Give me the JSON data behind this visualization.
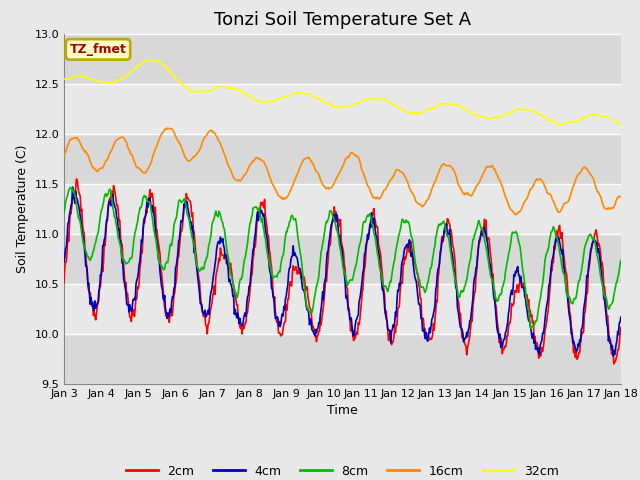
{
  "title": "Tonzi Soil Temperature Set A",
  "xlabel": "Time",
  "ylabel": "Soil Temperature (C)",
  "ylim": [
    9.5,
    13.0
  ],
  "yticks": [
    9.5,
    10.0,
    10.5,
    11.0,
    11.5,
    12.0,
    12.5,
    13.0
  ],
  "xtick_labels": [
    "Jan 3",
    "Jan 4",
    "Jan 5",
    "Jan 6",
    "Jan 7",
    "Jan 8",
    "Jan 9",
    "Jan 10",
    "Jan 11",
    "Jan 12",
    "Jan 13",
    "Jan 14",
    "Jan 15",
    "Jan 16",
    "Jan 17",
    "Jan 18"
  ],
  "colors": {
    "2cm": "#ff0000",
    "4cm": "#0000bb",
    "8cm": "#00bb00",
    "16cm": "#ff8800",
    "32cm": "#ffff00"
  },
  "annotation_text": "TZ_fmet",
  "annotation_color": "#aa0000",
  "annotation_bg": "#ffffcc",
  "annotation_border": "#bbaa00",
  "bg_color": "#e8e8e8",
  "band_colors": [
    "#d8d8d8",
    "#e8e8e8"
  ],
  "grid_color": "#ffffff",
  "title_fontsize": 13,
  "label_fontsize": 9,
  "tick_fontsize": 8
}
